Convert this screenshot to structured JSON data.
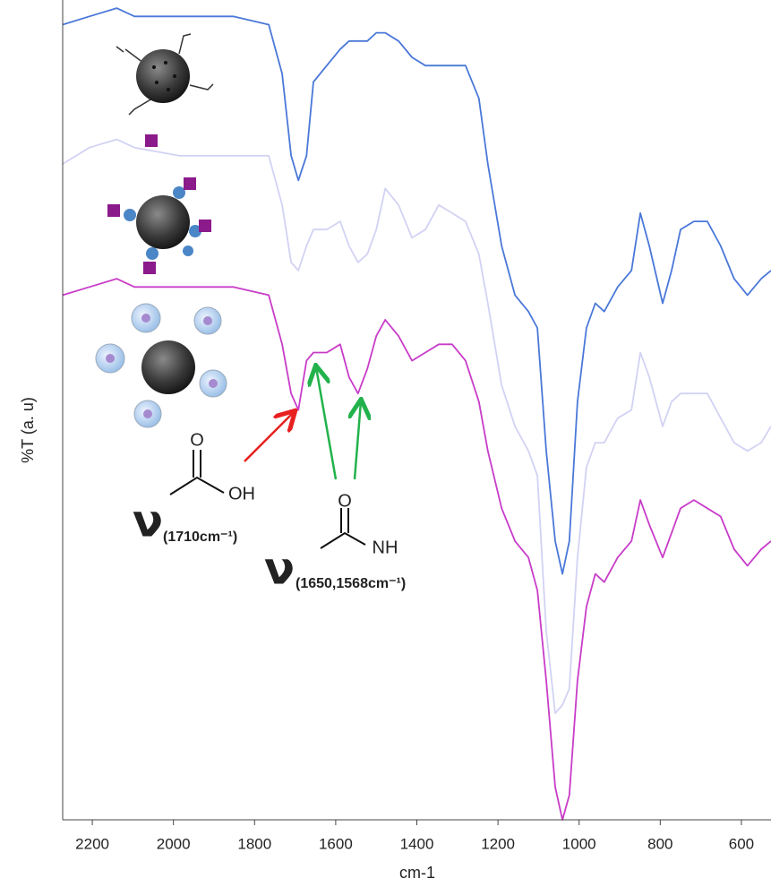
{
  "chart_data": {
    "type": "line",
    "x_label": "cm-1",
    "y_label": "%T (a. u)",
    "xlim": [
      2273,
      527
    ],
    "ylim": [
      0,
      100
    ],
    "xticks": [
      2200,
      2000,
      1800,
      1600,
      1400,
      1200,
      1000,
      800,
      600
    ],
    "x": [
      2273,
      2207,
      2140,
      2096,
      1986,
      1853,
      1765,
      1732,
      1710,
      1692,
      1672,
      1655,
      1622,
      1589,
      1567,
      1545,
      1522,
      1500,
      1478,
      1445,
      1412,
      1379,
      1346,
      1313,
      1280,
      1247,
      1225,
      1191,
      1158,
      1125,
      1103,
      1081,
      1059,
      1041,
      1024,
      1004,
      982,
      960,
      938,
      905,
      871,
      849,
      827,
      794,
      772,
      750,
      717,
      684,
      651,
      618,
      585,
      551,
      527
    ],
    "series": [
      {
        "color": "#4a78d8",
        "values": [
          97,
          98,
          99,
          98,
          98,
          98,
          97,
          91,
          81,
          78,
          81,
          90,
          92,
          94,
          95,
          95,
          95,
          96,
          96,
          95,
          93,
          92,
          92,
          92,
          92,
          88,
          80,
          70,
          64,
          62,
          60,
          45,
          34,
          30,
          34,
          51,
          60,
          63,
          62,
          65,
          67,
          74,
          70,
          63,
          67,
          72,
          73,
          73,
          70,
          66,
          64,
          66,
          67
        ]
      },
      {
        "color": "#d2d2f4",
        "values": [
          80,
          82,
          83,
          82,
          81,
          81,
          81,
          75,
          68,
          67,
          70,
          72,
          72,
          73,
          70,
          68,
          69,
          72,
          77,
          75,
          71,
          72,
          75,
          74,
          73,
          69,
          63,
          53,
          48,
          45,
          42,
          23,
          13,
          14,
          16,
          32,
          43,
          46,
          46,
          49,
          50,
          57,
          54,
          48,
          51,
          52,
          52,
          52,
          49,
          46,
          45,
          46,
          48
        ]
      },
      {
        "color": "#c83cc8",
        "values": [
          64,
          65,
          66,
          65,
          65,
          65,
          64,
          58,
          52,
          50,
          56,
          57,
          57,
          58,
          54,
          52,
          55,
          59,
          61,
          59,
          56,
          57,
          58,
          58,
          56,
          51,
          45,
          38,
          34,
          32,
          28,
          17,
          4,
          0,
          3,
          17,
          26,
          30,
          29,
          32,
          34,
          39,
          36,
          32,
          35,
          38,
          39,
          38,
          37,
          33,
          31,
          33,
          34
        ]
      }
    ],
    "chemical_labels": [
      "O",
      "OH",
      "O",
      "NH"
    ],
    "annotations": [
      {
        "symbol": "ν",
        "text": "(1710cm⁻¹)"
      },
      {
        "symbol": "ν",
        "text": "(1650,1568cm⁻¹)"
      }
    ]
  }
}
